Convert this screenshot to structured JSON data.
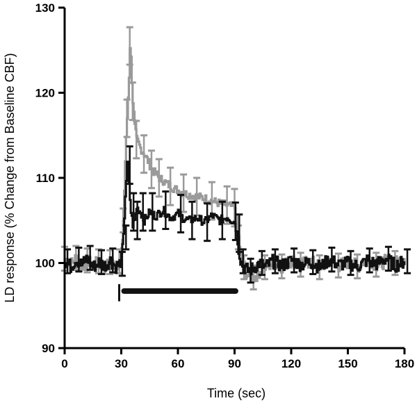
{
  "chart_data": {
    "type": "line",
    "title": "",
    "xlabel": "Time (sec)",
    "ylabel": "LD response (% Change from Baseline CBF)",
    "xlim": [
      0,
      180
    ],
    "ylim": [
      90,
      130
    ],
    "xticks": [
      "0",
      "30",
      "60",
      "90",
      "120",
      "150",
      "180"
    ],
    "yticks": [
      "90",
      "100",
      "110",
      "120",
      "130"
    ],
    "grid": false,
    "legend": "none",
    "colors": {
      "gray_series": "#9a9a9a",
      "black_series": "#111111",
      "stim_bar": "#111111"
    },
    "stimulus_bar": {
      "x_start": 30,
      "x_end": 92,
      "y": 96.7
    },
    "series": [
      {
        "color": "#9a9a9a",
        "x": [
          0,
          3,
          6,
          9,
          12,
          15,
          18,
          21,
          24,
          27,
          29,
          30,
          31,
          32,
          33,
          34,
          34.5,
          35,
          36,
          37,
          38,
          40,
          42,
          44,
          46,
          48,
          50,
          53,
          56,
          60,
          63,
          66,
          70,
          74,
          78,
          82,
          86,
          89,
          90,
          91,
          92,
          93,
          95,
          97,
          100,
          103,
          106,
          110,
          115,
          120,
          125,
          130,
          135,
          140,
          145,
          150,
          155,
          160,
          165,
          170,
          175,
          180
        ],
        "y": [
          100.5,
          99.8,
          100.6,
          99.5,
          100.3,
          99.6,
          100.2,
          99.4,
          100.1,
          99.8,
          100.2,
          101,
          105,
          112,
          117,
          122,
          125.5,
          124,
          119,
          116,
          114.5,
          113.5,
          112.8,
          112,
          111,
          110.5,
          110,
          109.5,
          109,
          108.5,
          108.2,
          108,
          107.8,
          107.6,
          107.3,
          107,
          106.8,
          106.6,
          106.5,
          105,
          103,
          101,
          99.5,
          98.5,
          98.3,
          99,
          99.5,
          100,
          99.6,
          100.3,
          99.8,
          100.2,
          99.5,
          100.4,
          99.7,
          100.1,
          99.6,
          100.5,
          99.8,
          100.2,
          100,
          100.6
        ]
      },
      {
        "color": "#111111",
        "x": [
          0,
          3,
          6,
          9,
          12,
          15,
          18,
          21,
          24,
          27,
          29,
          30,
          31,
          32,
          33,
          34,
          35,
          36,
          37,
          38,
          40,
          42,
          45,
          48,
          52,
          56,
          60,
          63,
          66,
          70,
          74,
          78,
          82,
          86,
          89,
          90,
          91,
          92,
          93,
          95,
          97,
          100,
          103,
          106,
          110,
          115,
          120,
          125,
          130,
          135,
          140,
          145,
          150,
          155,
          160,
          165,
          170,
          175,
          180
        ],
        "y": [
          100.2,
          99.6,
          100.4,
          99.8,
          100.6,
          99.5,
          100.1,
          99.7,
          100.3,
          99.6,
          99.9,
          100.5,
          103,
          108,
          111.5,
          109,
          106,
          104.5,
          105,
          106.5,
          106,
          105,
          106,
          105.5,
          106.2,
          105.3,
          105.8,
          105.2,
          105,
          105.3,
          104.8,
          105.6,
          105,
          105.4,
          104.9,
          104.8,
          103.5,
          101.5,
          100.2,
          99.5,
          99.1,
          99.4,
          100,
          99.5,
          100.2,
          99.7,
          100.3,
          99.8,
          100.1,
          99.5,
          100.4,
          99.8,
          100,
          99.6,
          100.3,
          99.9,
          100.5,
          99.7,
          100.2
        ]
      }
    ]
  }
}
